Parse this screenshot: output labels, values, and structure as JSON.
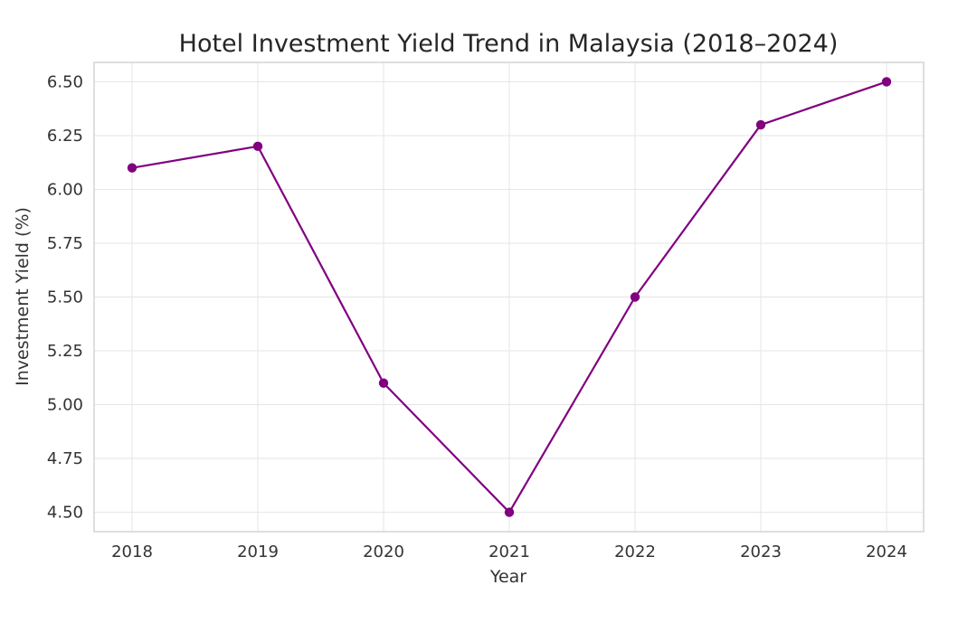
{
  "chart_data": {
    "type": "line",
    "title": "Hotel Investment Yield Trend in Malaysia (2018–2024)",
    "xlabel": "Year",
    "ylabel": "Investment Yield (%)",
    "x": [
      "2018",
      "2019",
      "2020",
      "2021",
      "2022",
      "2023",
      "2024"
    ],
    "series": [
      {
        "values": [
          6.1,
          6.2,
          5.1,
          4.5,
          5.5,
          6.3,
          6.5
        ],
        "color": "#800080",
        "marker": "circle"
      }
    ],
    "ylim": [
      4.41,
      6.59
    ],
    "yticks": [
      "4.50",
      "4.75",
      "5.00",
      "5.25",
      "5.50",
      "5.75",
      "6.00",
      "6.25",
      "6.50"
    ],
    "grid": true,
    "legend": "none"
  }
}
